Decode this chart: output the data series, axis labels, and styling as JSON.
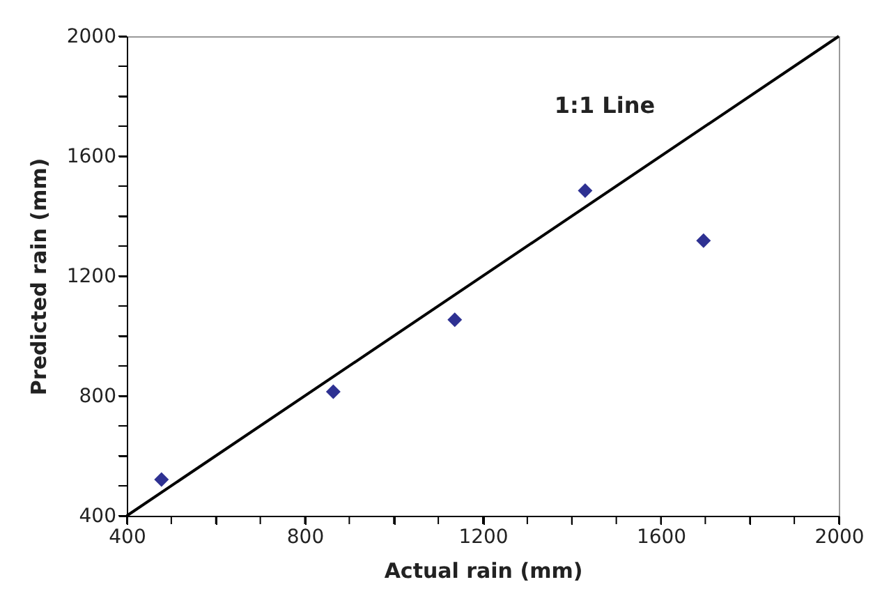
{
  "chart_data": {
    "type": "scatter",
    "xlabel": "Actual rain (mm)",
    "ylabel": "Predicted rain (mm)",
    "x": [
      478,
      864,
      1137,
      1430,
      1696
    ],
    "series": [
      {
        "color": "#2e3192",
        "marker": "diamond",
        "values": [
          521,
          814,
          1054,
          1485,
          1318
        ]
      },
      {
        "type": "line",
        "color": "#000000",
        "x": [
          400,
          2000
        ],
        "values": [
          400,
          2000
        ],
        "marker": "none",
        "line_style": "solid"
      }
    ],
    "annotations": [
      "1:1 Line"
    ],
    "xlim": [
      400,
      2000
    ],
    "ylim": [
      400,
      2000
    ],
    "xticks": [
      400,
      {
        "value": 500,
        "label": null
      },
      {
        "value": 600,
        "label": null
      },
      {
        "value": 700,
        "label": null
      },
      800,
      {
        "value": 900,
        "label": null
      },
      {
        "value": 1000,
        "label": null
      },
      {
        "value": 1100,
        "label": null
      },
      1200,
      {
        "value": 1300,
        "label": null
      },
      {
        "value": 1400,
        "label": null
      },
      {
        "value": 1500,
        "label": null
      },
      1600,
      {
        "value": 1700,
        "label": null
      },
      {
        "value": 1800,
        "label": null
      },
      {
        "value": 1900,
        "label": null
      },
      2000
    ],
    "yticks": [
      400,
      {
        "value": 500,
        "label": null
      },
      {
        "value": 600,
        "label": null
      },
      {
        "value": 700,
        "label": null
      },
      800,
      {
        "value": 900,
        "label": null
      },
      {
        "value": 1000,
        "label": null
      },
      {
        "value": 1100,
        "label": null
      },
      1200,
      {
        "value": 1300,
        "label": null
      },
      {
        "value": 1400,
        "label": null
      },
      {
        "value": 1500,
        "label": null
      },
      1600,
      {
        "value": 1700,
        "label": null
      },
      {
        "value": 1800,
        "label": null
      },
      {
        "value": 1900,
        "label": null
      },
      2000
    ],
    "grid": false
  }
}
